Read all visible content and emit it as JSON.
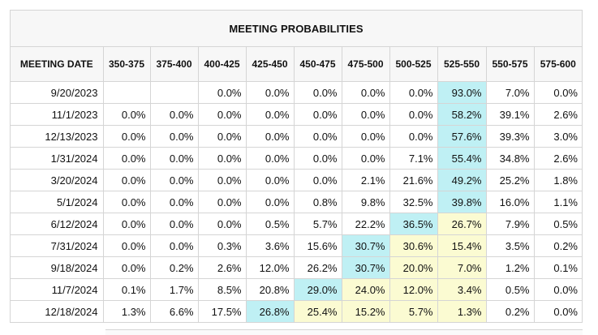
{
  "panel": {
    "title": "MEETING PROBABILITIES"
  },
  "columns": [
    "MEETING DATE",
    "350-375",
    "375-400",
    "400-425",
    "425-450",
    "450-475",
    "475-500",
    "500-525",
    "525-550",
    "550-575",
    "575-600"
  ],
  "rows": [
    {
      "date": "9/20/2023",
      "cells": [
        "",
        "",
        "0.0%",
        "0.0%",
        "0.0%",
        "0.0%",
        "0.0%",
        "93.0%",
        "7.0%",
        "0.0%"
      ],
      "cur": 7,
      "hi": []
    },
    {
      "date": "11/1/2023",
      "cells": [
        "0.0%",
        "0.0%",
        "0.0%",
        "0.0%",
        "0.0%",
        "0.0%",
        "0.0%",
        "58.2%",
        "39.1%",
        "2.6%"
      ],
      "cur": 7,
      "hi": []
    },
    {
      "date": "12/13/2023",
      "cells": [
        "0.0%",
        "0.0%",
        "0.0%",
        "0.0%",
        "0.0%",
        "0.0%",
        "0.0%",
        "57.6%",
        "39.3%",
        "3.0%"
      ],
      "cur": 7,
      "hi": []
    },
    {
      "date": "1/31/2024",
      "cells": [
        "0.0%",
        "0.0%",
        "0.0%",
        "0.0%",
        "0.0%",
        "0.0%",
        "7.1%",
        "55.4%",
        "34.8%",
        "2.6%"
      ],
      "cur": 7,
      "hi": []
    },
    {
      "date": "3/20/2024",
      "cells": [
        "0.0%",
        "0.0%",
        "0.0%",
        "0.0%",
        "0.0%",
        "2.1%",
        "21.6%",
        "49.2%",
        "25.2%",
        "1.8%"
      ],
      "cur": 7,
      "hi": []
    },
    {
      "date": "5/1/2024",
      "cells": [
        "0.0%",
        "0.0%",
        "0.0%",
        "0.0%",
        "0.8%",
        "9.8%",
        "32.5%",
        "39.8%",
        "16.0%",
        "1.1%"
      ],
      "cur": 7,
      "hi": []
    },
    {
      "date": "6/12/2024",
      "cells": [
        "0.0%",
        "0.0%",
        "0.0%",
        "0.5%",
        "5.7%",
        "22.2%",
        "36.5%",
        "26.7%",
        "7.9%",
        "0.5%"
      ],
      "cur": 6,
      "hi": [
        7
      ]
    },
    {
      "date": "7/31/2024",
      "cells": [
        "0.0%",
        "0.0%",
        "0.3%",
        "3.6%",
        "15.6%",
        "30.7%",
        "30.6%",
        "15.4%",
        "3.5%",
        "0.2%"
      ],
      "cur": 5,
      "hi": [
        6,
        7
      ]
    },
    {
      "date": "9/18/2024",
      "cells": [
        "0.0%",
        "0.2%",
        "2.6%",
        "12.0%",
        "26.2%",
        "30.7%",
        "20.0%",
        "7.0%",
        "1.2%",
        "0.1%"
      ],
      "cur": 5,
      "hi": [
        6,
        7
      ]
    },
    {
      "date": "11/7/2024",
      "cells": [
        "0.1%",
        "1.7%",
        "8.5%",
        "20.8%",
        "29.0%",
        "24.0%",
        "12.0%",
        "3.4%",
        "0.5%",
        "0.0%"
      ],
      "cur": 4,
      "hi": [
        5,
        6,
        7
      ]
    },
    {
      "date": "12/18/2024",
      "cells": [
        "1.3%",
        "6.6%",
        "17.5%",
        "26.8%",
        "25.4%",
        "15.2%",
        "5.7%",
        "1.3%",
        "0.2%",
        "0.0%"
      ],
      "cur": 3,
      "hi": [
        4,
        5,
        6,
        7
      ]
    }
  ],
  "colors": {
    "current_target": "#bff0f4",
    "path_highlight": "#fbfbd2",
    "border": "#d5d5d5"
  }
}
